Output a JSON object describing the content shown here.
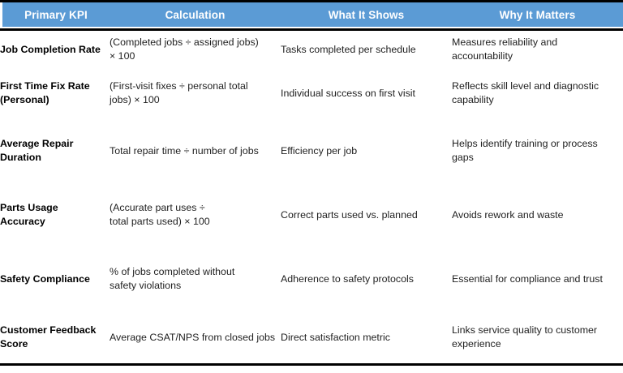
{
  "colors": {
    "header_bg": "#5B9BD5",
    "header_text": "#FFFFFF",
    "rule": "#000000",
    "body_text": "#1F1F1F"
  },
  "table": {
    "columns": [
      {
        "label": "Primary KPI"
      },
      {
        "label": "Calculation"
      },
      {
        "label": "What It Shows"
      },
      {
        "label": "Why It Matters"
      }
    ],
    "rows": [
      {
        "kpi": "Job Completion Rate",
        "calculation": "(Completed jobs ÷ assigned jobs)\n× 100",
        "shows": "Tasks completed per schedule",
        "matters": "Measures reliability and\naccountability"
      },
      {
        "kpi": "First Time Fix Rate\n(Personal)",
        "calculation": "(First-visit fixes ÷ personal total\njobs) × 100",
        "shows": "Individual success on first visit",
        "matters": "Reflects skill level and diagnostic\ncapability"
      },
      {
        "kpi": "Average Repair\nDuration",
        "calculation": "Total repair time ÷ number of jobs",
        "shows": "Efficiency per job",
        "matters": "Helps identify training or process\ngaps"
      },
      {
        "kpi": "Parts Usage Accuracy",
        "calculation": "(Accurate part uses ÷\ntotal parts used) × 100",
        "shows": "Correct parts used vs. planned",
        "matters": "Avoids rework and waste"
      },
      {
        "kpi": "Safety Compliance",
        "calculation": "% of jobs completed without\nsafety violations",
        "shows": "Adherence to safety protocols",
        "matters": "Essential for compliance and trust"
      },
      {
        "kpi": "Customer Feedback\nScore",
        "calculation": "Average CSAT/NPS from closed jobs",
        "shows": "Direct satisfaction metric",
        "matters": "Links service quality to customer\nexperience"
      }
    ]
  }
}
